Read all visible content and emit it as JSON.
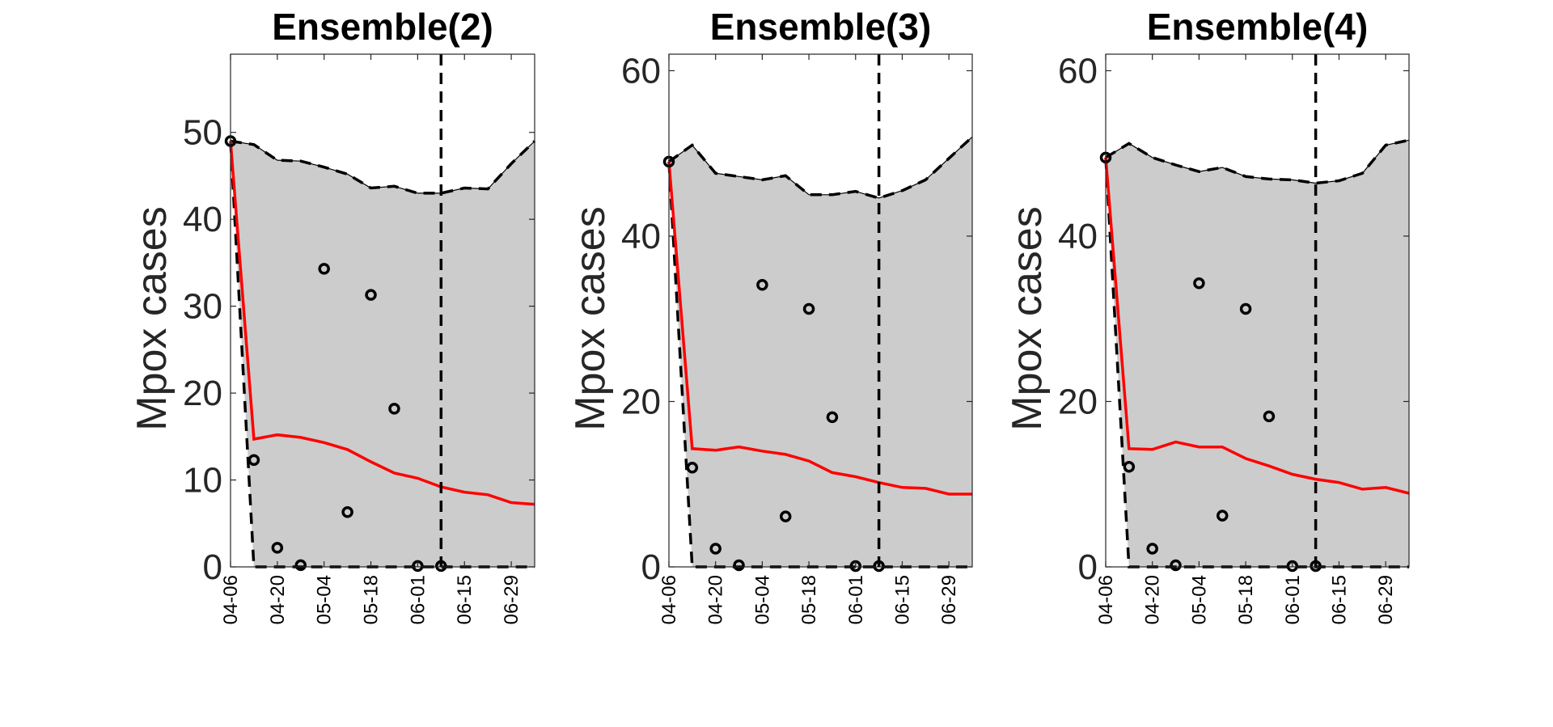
{
  "chart_data": [
    {
      "type": "line",
      "title": "Ensemble(2)",
      "ylabel": "Mpox cases",
      "xlabel": "",
      "x_tick_labels": [
        "04-06",
        "04-20",
        "05-04",
        "05-18",
        "06-01",
        "06-15",
        "06-29"
      ],
      "x_tick_positions": [
        0,
        2,
        4,
        6,
        8,
        10,
        12
      ],
      "xlim": [
        0,
        13
      ],
      "ylim": [
        0,
        59
      ],
      "y_ticks": [
        0,
        10,
        20,
        30,
        40,
        50
      ],
      "forecast_start_x": 9,
      "interval_upper": [
        49,
        48.6,
        46.8,
        46.7,
        46,
        45.2,
        43.6,
        43.8,
        43,
        43,
        43.6,
        43.5,
        46.4,
        49
      ],
      "interval_lower": [
        49,
        0,
        0,
        0,
        0,
        0,
        0,
        0,
        0,
        0,
        0,
        0,
        0,
        0
      ],
      "series": [
        {
          "name": "",
          "kind": "mean",
          "values": [
            49,
            14.7,
            15.2,
            14.9,
            14.3,
            13.5,
            12.1,
            10.8,
            10.2,
            9.2,
            8.6,
            8.3,
            7.4,
            7.2
          ]
        },
        {
          "name": "",
          "kind": "observed",
          "x": [
            0,
            1,
            2,
            3,
            4,
            5,
            6,
            7,
            8,
            9
          ],
          "values": [
            49,
            12.3,
            2.2,
            0.2,
            34.3,
            6.3,
            31.3,
            18.2,
            0.1,
            0.1
          ]
        }
      ]
    },
    {
      "type": "line",
      "title": "Ensemble(3)",
      "ylabel": "Mpox cases",
      "xlabel": "",
      "x_tick_labels": [
        "04-06",
        "04-20",
        "05-04",
        "05-18",
        "06-01",
        "06-15",
        "06-29"
      ],
      "x_tick_positions": [
        0,
        2,
        4,
        6,
        8,
        10,
        12
      ],
      "xlim": [
        0,
        13
      ],
      "ylim": [
        0,
        62
      ],
      "y_ticks": [
        0,
        20,
        40,
        60
      ],
      "forecast_start_x": 9,
      "interval_upper": [
        49,
        51,
        47.6,
        47.2,
        46.8,
        47.3,
        45,
        45,
        45.4,
        44.6,
        45.5,
        46.8,
        49.4,
        52
      ],
      "interval_lower": [
        49,
        0,
        0,
        0,
        0,
        0,
        0,
        0,
        0,
        0,
        0,
        0,
        0,
        0
      ],
      "series": [
        {
          "name": "",
          "kind": "mean",
          "values": [
            49,
            14.3,
            14.1,
            14.5,
            14,
            13.6,
            12.8,
            11.4,
            10.9,
            10.2,
            9.6,
            9.5,
            8.8,
            8.8
          ]
        },
        {
          "name": "",
          "kind": "observed",
          "x": [
            0,
            1,
            2,
            3,
            4,
            5,
            6,
            7,
            8,
            9
          ],
          "values": [
            49,
            12,
            2.2,
            0.2,
            34.1,
            6.1,
            31.2,
            18.1,
            0.1,
            0.1
          ]
        }
      ]
    },
    {
      "type": "line",
      "title": "Ensemble(4)",
      "ylabel": "Mpox cases",
      "xlabel": "",
      "x_tick_labels": [
        "04-06",
        "04-20",
        "05-04",
        "05-18",
        "06-01",
        "06-15",
        "06-29"
      ],
      "x_tick_positions": [
        0,
        2,
        4,
        6,
        8,
        10,
        12
      ],
      "xlim": [
        0,
        13
      ],
      "ylim": [
        0,
        62
      ],
      "y_ticks": [
        0,
        20,
        40,
        60
      ],
      "forecast_start_x": 9,
      "interval_upper": [
        49.5,
        51.2,
        49.5,
        48.6,
        47.8,
        48.3,
        47.2,
        46.9,
        46.8,
        46.4,
        46.7,
        47.6,
        51,
        51.6
      ],
      "interval_lower": [
        49.5,
        0,
        0,
        0,
        0,
        0,
        0,
        0,
        0,
        0,
        0,
        0,
        0,
        0
      ],
      "series": [
        {
          "name": "",
          "kind": "mean",
          "values": [
            49.5,
            14.3,
            14.2,
            15.1,
            14.5,
            14.5,
            13.1,
            12.2,
            11.2,
            10.6,
            10.2,
            9.4,
            9.6,
            8.9
          ]
        },
        {
          "name": "",
          "kind": "observed",
          "x": [
            0,
            1,
            2,
            3,
            4,
            5,
            6,
            7,
            8,
            9
          ],
          "values": [
            49.5,
            12.1,
            2.2,
            0.2,
            34.3,
            6.2,
            31.2,
            18.2,
            0.1,
            0.1
          ]
        }
      ]
    }
  ],
  "colors": {
    "band_fill": "#cccccc",
    "mean_line": "#ff0000",
    "bound_line": "#000000",
    "observed_marker": "#000000",
    "axis": "#262626"
  }
}
